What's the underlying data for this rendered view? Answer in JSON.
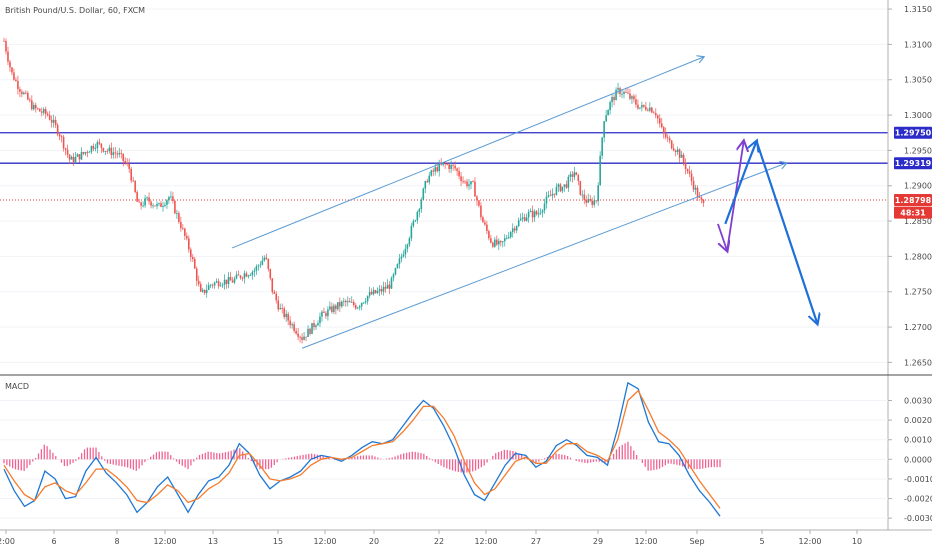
{
  "chart_data": [
    {
      "type": "candlestick",
      "title": "British Pound/U.S. Dollar, 60, FXCM",
      "ylim": [
        1.2635,
        1.316
      ],
      "y_ticks": [
        "1.31500",
        "1.31000",
        "1.30500",
        "1.30000",
        "1.29500",
        "1.29000",
        "1.28500",
        "1.28000",
        "1.27500",
        "1.27000",
        "1.26500"
      ],
      "y_tick_values": [
        1.315,
        1.31,
        1.305,
        1.3,
        1.295,
        1.29,
        1.285,
        1.28,
        1.275,
        1.27,
        1.265
      ],
      "x_ticks": [
        "2:00",
        "6",
        "8",
        "12:00",
        "13",
        "15",
        "12:00",
        "20",
        "22",
        "12:00",
        "27",
        "29",
        "12:00",
        "Sep",
        "5",
        "12:00",
        "10"
      ],
      "price_labels": [
        {
          "text": "1.29750",
          "value": 1.2975,
          "color": "#2c2cc8"
        },
        {
          "text": "1.29319",
          "value": 1.29319,
          "color": "#2c2cc8"
        },
        {
          "text": "1.28798",
          "value": 1.28798,
          "color": "#e53935"
        },
        {
          "text": "48:31",
          "value": 1.2862,
          "color": "#e53935"
        }
      ],
      "horizontal_lines": [
        {
          "value": 1.2975,
          "color": "#2c2cc8"
        },
        {
          "value": 1.29319,
          "color": "#2c2cc8"
        },
        {
          "value": 1.28798,
          "color": "#e53935",
          "dashed": true
        }
      ],
      "channel_lines": [
        {
          "from": [
            12.4,
            1.2812
          ],
          "to": [
            38.0,
            1.3082
          ],
          "color": "#5b9bd5",
          "arrow": true
        },
        {
          "from": [
            16.2,
            1.267
          ],
          "to": [
            42.5,
            1.2932
          ],
          "color": "#5b9bd5",
          "arrow": true
        }
      ],
      "projection_arrows": [
        {
          "points": [
            [
              38.8,
              1.2846
            ],
            [
              39.3,
              1.2808
            ]
          ],
          "color": "#7e3fd0"
        },
        {
          "points": [
            [
              39.3,
              1.2808
            ],
            [
              40.2,
              1.2963
            ]
          ],
          "color": "#7e3fd0"
        },
        {
          "points": [
            [
              39.2,
              1.2846
            ],
            [
              40.4,
              1.293
            ],
            [
              40.9,
              1.2963
            ]
          ],
          "color": "#1e6fd9"
        },
        {
          "points": [
            [
              40.9,
              1.2963
            ],
            [
              44.2,
              1.2705
            ]
          ],
          "color": "#1e6fd9"
        }
      ],
      "colors": {
        "up": "#26a69a",
        "down": "#ef5350"
      }
    },
    {
      "type": "macd",
      "title": "MACD",
      "ylim": [
        -0.0034,
        0.0042
      ],
      "y_ticks": [
        "0.0030",
        "0.0020",
        "0.0010",
        "0.0000",
        "-0.0010",
        "-0.0020",
        "-0.0030"
      ],
      "y_tick_values": [
        0.003,
        0.002,
        0.001,
        0,
        -0.001,
        -0.002,
        -0.003
      ],
      "series": [
        {
          "role": "macd",
          "color": "#1f77d4",
          "values": [
            -0.0005,
            -0.0016,
            -0.0024,
            -0.0021,
            -0.0006,
            -0.001,
            -0.002,
            -0.0019,
            -0.0006,
            0.0001,
            -0.0007,
            -0.0012,
            -0.0018,
            -0.0027,
            -0.0022,
            -0.0014,
            -0.0009,
            -0.0018,
            -0.0027,
            -0.0018,
            -0.0011,
            -0.0009,
            -0.0003,
            0.0008,
            0.0003,
            -0.0008,
            -0.0015,
            -0.0011,
            -0.0009,
            -0.0006,
            0.0,
            0.0002,
            0.0001,
            -0.0001,
            0.0002,
            0.0006,
            0.0009,
            0.0008,
            0.001,
            0.0017,
            0.0024,
            0.003,
            0.0026,
            0.0017,
            0.0006,
            -0.0008,
            -0.0018,
            -0.0021,
            -0.0012,
            -0.0003,
            0.0003,
            0.0002,
            -0.0004,
            -0.0001,
            0.0007,
            0.001,
            0.0007,
            0.0002,
            0.0001,
            -0.0003,
            0.0016,
            0.0039,
            0.0036,
            0.0019,
            0.0009,
            0.0008,
            0.0002,
            -0.0008,
            -0.0016,
            -0.0022,
            -0.0029
          ]
        },
        {
          "role": "signal",
          "color": "#f57c2e",
          "values": [
            -0.0003,
            -0.0011,
            -0.0018,
            -0.0021,
            -0.0014,
            -0.0012,
            -0.0016,
            -0.0018,
            -0.0012,
            -0.0005,
            -0.0005,
            -0.0009,
            -0.0014,
            -0.0021,
            -0.0022,
            -0.0018,
            -0.0013,
            -0.0016,
            -0.0022,
            -0.002,
            -0.0015,
            -0.0012,
            -0.0007,
            0.0002,
            0.0003,
            -0.0003,
            -0.001,
            -0.0011,
            -0.001,
            -0.0008,
            -0.0003,
            0.0,
            0.0001,
            0.0,
            0.0001,
            0.0004,
            0.0007,
            0.0008,
            0.0009,
            0.0014,
            0.002,
            0.0027,
            0.0027,
            0.0021,
            0.0012,
            -0.0001,
            -0.0012,
            -0.0018,
            -0.0015,
            -0.0008,
            -0.0001,
            0.0001,
            -0.0002,
            -0.0002,
            0.0004,
            0.0008,
            0.0008,
            0.0004,
            0.0002,
            -0.0001,
            0.001,
            0.003,
            0.0035,
            0.0025,
            0.0014,
            0.001,
            0.0005,
            -0.0003,
            -0.0011,
            -0.0018,
            -0.0025
          ]
        }
      ],
      "histogram_color": "#f06292"
    }
  ]
}
